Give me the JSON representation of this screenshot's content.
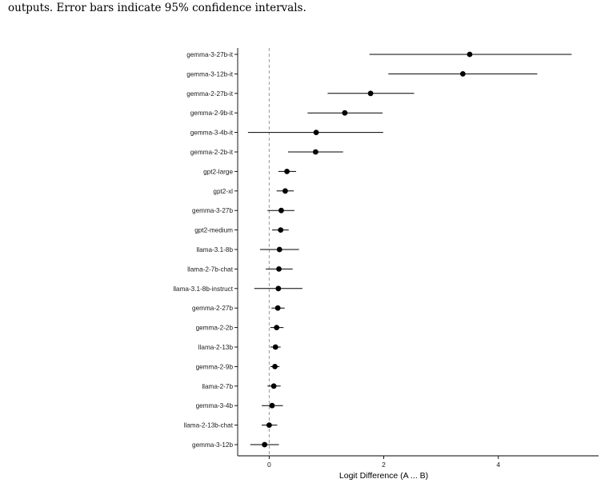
{
  "caption": "outputs. Error bars indicate 95% confidence intervals.",
  "chart_data": {
    "type": "scatter",
    "subtype": "forest-plot",
    "xlabel": "Logit Difference (A ... B)",
    "ylabel": "",
    "xlim": [
      -0.55,
      5.75
    ],
    "xticks": [
      0,
      2,
      4
    ],
    "reference_line_x": 0,
    "grid": false,
    "colors": {
      "point": "#000000",
      "errorbar": "#000000",
      "refline": "#9a9a9a"
    },
    "rows": [
      {
        "label": "gemma-3-27b-it",
        "value": 3.5,
        "low": 1.75,
        "high": 5.28
      },
      {
        "label": "gemma-3-12b-it",
        "value": 3.38,
        "low": 2.08,
        "high": 4.68
      },
      {
        "label": "gemma-2-27b-it",
        "value": 1.77,
        "low": 1.02,
        "high": 2.53
      },
      {
        "label": "gemma-2-9b-it",
        "value": 1.32,
        "low": 0.67,
        "high": 1.98
      },
      {
        "label": "gemma-3-4b-it",
        "value": 0.82,
        "low": -0.37,
        "high": 1.99
      },
      {
        "label": "gemma-2-2b-it",
        "value": 0.81,
        "low": 0.33,
        "high": 1.29
      },
      {
        "label": "gpt2-large",
        "value": 0.31,
        "low": 0.16,
        "high": 0.47
      },
      {
        "label": "gpt2-xl",
        "value": 0.28,
        "low": 0.13,
        "high": 0.43
      },
      {
        "label": "gemma-3-27b",
        "value": 0.21,
        "low": -0.03,
        "high": 0.44
      },
      {
        "label": "gpt2-medium",
        "value": 0.2,
        "low": 0.05,
        "high": 0.34
      },
      {
        "label": "llama-3.1-8b",
        "value": 0.18,
        "low": -0.16,
        "high": 0.52
      },
      {
        "label": "llama-2-7b-chat",
        "value": 0.17,
        "low": -0.06,
        "high": 0.41
      },
      {
        "label": "llama-3.1-8b-instruct",
        "value": 0.16,
        "low": -0.26,
        "high": 0.58
      },
      {
        "label": "gemma-2-27b",
        "value": 0.15,
        "low": 0.04,
        "high": 0.27
      },
      {
        "label": "gemma-2-2b",
        "value": 0.13,
        "low": 0.02,
        "high": 0.25
      },
      {
        "label": "llama-2-13b",
        "value": 0.11,
        "low": 0.02,
        "high": 0.2
      },
      {
        "label": "gemma-2-9b",
        "value": 0.1,
        "low": 0.02,
        "high": 0.18
      },
      {
        "label": "llama-2-7b",
        "value": 0.08,
        "low": -0.03,
        "high": 0.2
      },
      {
        "label": "gemma-3-4b",
        "value": 0.05,
        "low": -0.13,
        "high": 0.24
      },
      {
        "label": "llama-2-13b-chat",
        "value": 0.0,
        "low": -0.13,
        "high": 0.14
      },
      {
        "label": "gemma-3-12b",
        "value": -0.08,
        "low": -0.33,
        "high": 0.17
      }
    ]
  }
}
